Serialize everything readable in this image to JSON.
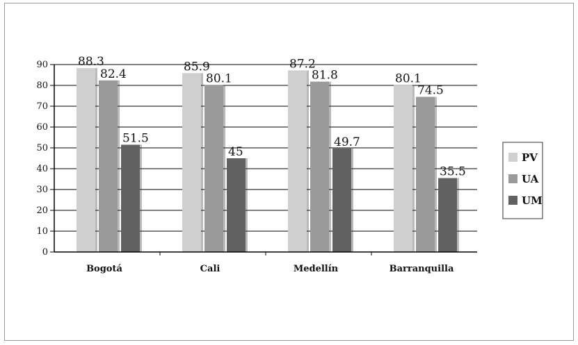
{
  "chart_data": {
    "type": "bar",
    "title": "",
    "xlabel": "",
    "ylabel": "",
    "categories": [
      "Bogotá",
      "Cali",
      "Medellín",
      "Barranquilla"
    ],
    "series": [
      {
        "name": "PV",
        "values": [
          88.3,
          85.9,
          87.2,
          80.1
        ],
        "labels": [
          "88.3",
          "85.9",
          "87.2",
          "80.1"
        ],
        "color": "#cfcfcf"
      },
      {
        "name": "UA",
        "values": [
          82.4,
          80.1,
          81.8,
          74.5
        ],
        "labels": [
          "82.4",
          "80.1",
          "81.8",
          "74.5"
        ],
        "color": "#9a9a9a"
      },
      {
        "name": "UM",
        "values": [
          51.5,
          45,
          49.7,
          35.5
        ],
        "labels": [
          "51.5",
          "45",
          "49.7",
          "35.5"
        ],
        "color": "#616161"
      }
    ],
    "ylim": [
      0,
      90
    ],
    "yticks": [
      "0",
      "10",
      "20",
      "30",
      "40",
      "50",
      "60",
      "70",
      "80",
      "90"
    ],
    "grid": true,
    "legend_position": "right"
  }
}
